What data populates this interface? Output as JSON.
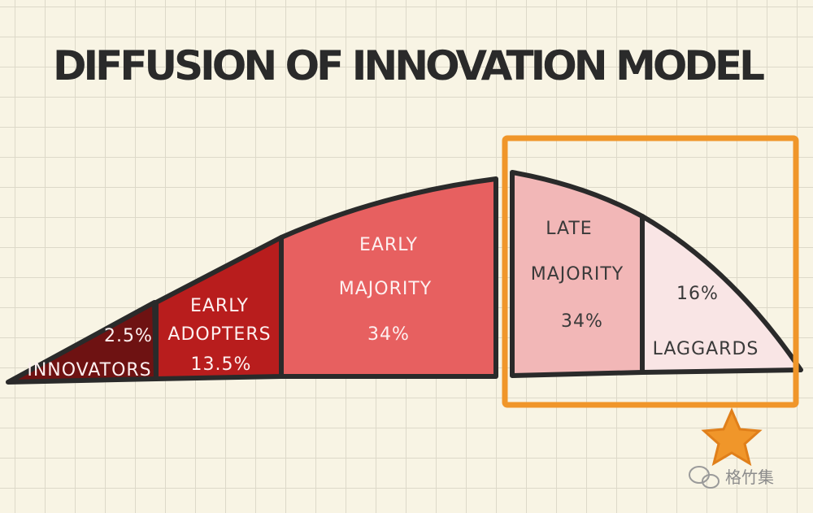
{
  "title": "DIFFUSION OF INNOVATION MODEL",
  "segments": [
    {
      "label": [
        "INNOVATORS"
      ],
      "percent": "2.5%"
    },
    {
      "label": [
        "EARLY",
        "ADOPTERS"
      ],
      "percent": "13.5%"
    },
    {
      "label": [
        "EARLY",
        "MAJORITY"
      ],
      "percent": "34%"
    },
    {
      "label": [
        "LATE",
        "MAJORITY"
      ],
      "percent": "34%"
    },
    {
      "label": [
        "LAGGARDS"
      ],
      "percent": "16%"
    }
  ],
  "watermark": "格竹集"
}
